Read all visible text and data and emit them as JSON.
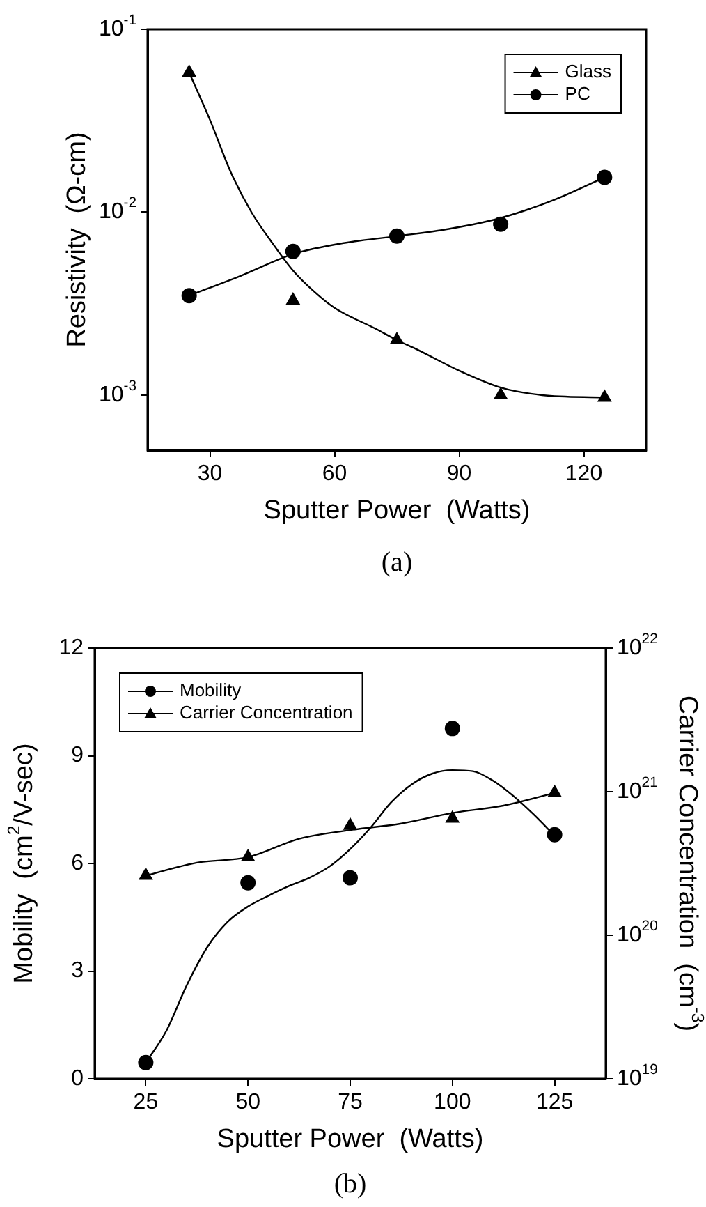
{
  "chart_data": [
    {
      "type": "scatter",
      "xlabel": "Sputter Power  (Watts)",
      "ylabel": "Resistivity  (Ω-cm)",
      "annotations": [
        "(a)"
      ],
      "log": "y",
      "legend": "top right",
      "x": [
        25,
        50,
        75,
        100,
        125
      ],
      "xlim": [
        15,
        135
      ],
      "xticks": [
        30,
        60,
        90,
        120
      ],
      "ylim": [
        0.0005,
        0.1
      ],
      "yticks": [
        {
          "value": 0.001,
          "label": "10$^{-3}$"
        },
        {
          "value": 0.01,
          "label": "10$^{-2}$"
        },
        {
          "value": 0.1,
          "label": "10$^{-1}$"
        }
      ],
      "series": [
        {
          "name": "Glass",
          "color": "#000000",
          "marker": "triangle",
          "values": [
            0.058,
            0.0033,
            0.002,
            0.001,
            0.00097
          ]
        },
        {
          "name": "PC",
          "color": "#000000",
          "marker": "circle",
          "values": [
            0.0035,
            0.0061,
            0.0074,
            0.0086,
            0.0155
          ]
        },
        {
          "type": "line",
          "color": "#000000",
          "marker": "none",
          "x": [
            25,
            30,
            35,
            40,
            45,
            50,
            55,
            60,
            70,
            75,
            80,
            90,
            100,
            110,
            125
          ],
          "values": [
            0.058,
            0.032,
            0.0166,
            0.01,
            0.0068,
            0.0048,
            0.0037,
            0.003,
            0.0023,
            0.002,
            0.00177,
            0.00136,
            0.0011,
            0.001,
            0.00097
          ]
        },
        {
          "type": "line",
          "color": "#000000",
          "marker": "none",
          "x": [
            25,
            37.5,
            50,
            62.5,
            75,
            87.5,
            100,
            112.5,
            125
          ],
          "values": [
            0.0035,
            0.0045,
            0.0059,
            0.0068,
            0.0074,
            0.0081,
            0.0093,
            0.0116,
            0.0155
          ]
        }
      ]
    },
    {
      "type": "scatter",
      "xlabel": "Sputter Power  (Watts)",
      "ylabel": "Mobility  (cm$^{2}$/V-sec)",
      "y2label": "Carrier Concentration  (cm$^{-3}$)",
      "annotations": [
        "(b)"
      ],
      "log": "y2",
      "legend": "top left",
      "x": [
        25,
        50,
        75,
        100,
        125
      ],
      "xlim": [
        12.5,
        137.5
      ],
      "xticks": [
        25,
        50,
        75,
        100,
        125
      ],
      "ylim": [
        0,
        12
      ],
      "yticks": [
        0,
        3,
        6,
        9,
        12
      ],
      "y2lim": [
        1e+19,
        1e+22
      ],
      "y2ticks": [
        {
          "value": 1e+19,
          "label": "10$^{19}$"
        },
        {
          "value": 1e+20,
          "label": "10$^{20}$"
        },
        {
          "value": 1e+21,
          "label": "10$^{21}$"
        },
        {
          "value": 1e+22,
          "label": "10$^{22}$"
        }
      ],
      "series": [
        {
          "name": "Mobility",
          "color": "#000000",
          "marker": "circle",
          "values": [
            0.45,
            5.46,
            5.6,
            9.76,
            6.8
          ]
        },
        {
          "name": "Carrier Concentration",
          "color": "#000000",
          "marker": "triangle",
          "axis": "y2",
          "values": [
            2.6e+20,
            3.5e+20,
            5.8e+20,
            6.5e+20,
            9.8e+20
          ]
        },
        {
          "type": "line",
          "color": "#000000",
          "marker": "none",
          "x": [
            25,
            30,
            35,
            40,
            45,
            50,
            55,
            60,
            65,
            70,
            75,
            80,
            85,
            90,
            95,
            100,
            105,
            110,
            115,
            120,
            125
          ],
          "values": [
            0.45,
            1.33,
            2.6,
            3.66,
            4.37,
            4.8,
            5.1,
            5.37,
            5.6,
            5.92,
            6.4,
            7.0,
            7.7,
            8.2,
            8.5,
            8.6,
            8.57,
            8.3,
            7.87,
            7.35,
            6.77
          ]
        },
        {
          "type": "line",
          "color": "#000000",
          "marker": "none",
          "axis": "y2",
          "x": [
            25,
            37.5,
            50,
            62.5,
            75,
            87.5,
            100,
            112.5,
            125
          ],
          "values": [
            2.6e+20,
            3.2e+20,
            3.5e+20,
            4.7e+20,
            5.4e+20,
            6e+20,
            7.1e+20,
            8e+20,
            9.8e+20
          ]
        }
      ]
    }
  ]
}
